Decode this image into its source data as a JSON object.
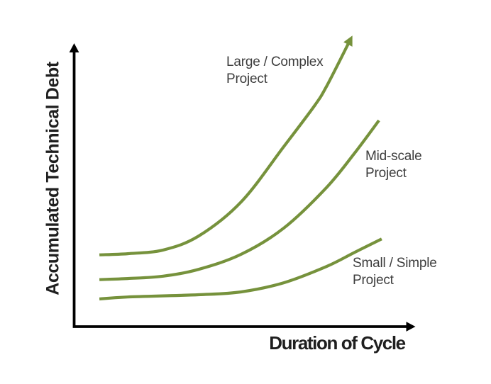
{
  "chart_data": {
    "type": "line",
    "title": "",
    "xlabel": "Duration of Cycle",
    "ylabel": "Accumulated Technical Debt",
    "x_axis": {
      "label": "Duration of Cycle",
      "ticks": [],
      "arrow": true
    },
    "y_axis": {
      "label": "Accumulated Technical Debt",
      "ticks": [],
      "arrow": true
    },
    "grid": false,
    "legend_position": "inline-annotations",
    "units_note": "conceptual diagram, axes unscaled; points in normalized 0-100 units",
    "background_color": "#ffffff",
    "axis_color": "#000000",
    "annotation_color": "#3d3d3d",
    "axis_label_color": "#1f1f1f",
    "series_color": "#76923C",
    "series": [
      {
        "name": "Large / Complex Project",
        "label": "Large / Complex\nProject",
        "color": "#76923C",
        "arrowhead": true,
        "points": [
          [
            7.4,
            25.2
          ],
          [
            15.7,
            25.6
          ],
          [
            26.1,
            26.9
          ],
          [
            36.5,
            31.8
          ],
          [
            49.0,
            43.8
          ],
          [
            61.5,
            63.2
          ],
          [
            70.4,
            77.4
          ],
          [
            74.0,
            84.3
          ],
          [
            80.4,
            99.3
          ]
        ]
      },
      {
        "name": "Mid-scale Project",
        "label": "Mid-scale\nProject",
        "color": "#76923C",
        "arrowhead": false,
        "points": [
          [
            7.4,
            16.5
          ],
          [
            15.7,
            16.9
          ],
          [
            26.1,
            17.7
          ],
          [
            36.5,
            20.1
          ],
          [
            49.0,
            25.4
          ],
          [
            61.5,
            34.6
          ],
          [
            74.0,
            48.8
          ],
          [
            82.3,
            61.0
          ],
          [
            89.4,
            72.4
          ]
        ]
      },
      {
        "name": "Small / Simple Project",
        "label": "Small / Simple\nProject",
        "color": "#76923C",
        "arrowhead": false,
        "points": [
          [
            7.4,
            9.7
          ],
          [
            15.7,
            10.4
          ],
          [
            36.5,
            11.2
          ],
          [
            49.0,
            12.2
          ],
          [
            61.5,
            15.4
          ],
          [
            74.0,
            21.1
          ],
          [
            82.3,
            26.1
          ],
          [
            90.2,
            30.8
          ]
        ]
      }
    ]
  }
}
